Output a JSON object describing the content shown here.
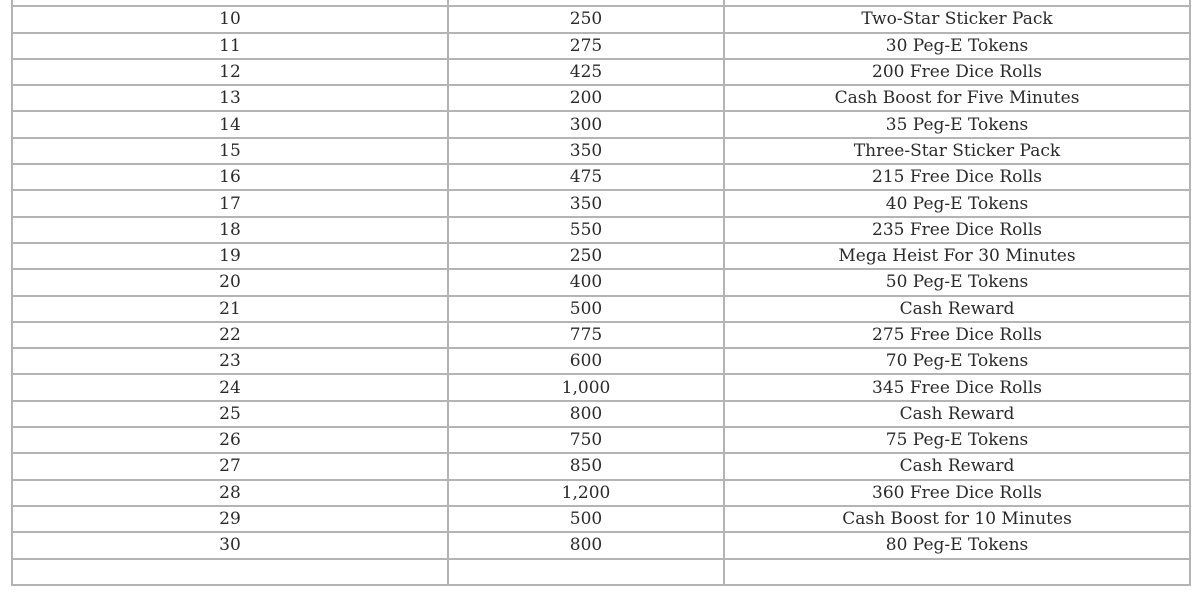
{
  "table": {
    "rows": [
      [
        "10",
        "250",
        "Two-Star Sticker Pack"
      ],
      [
        "11",
        "275",
        "30 Peg-E Tokens"
      ],
      [
        "12",
        "425",
        "200 Free Dice Rolls"
      ],
      [
        "13",
        "200",
        "Cash Boost for Five Minutes"
      ],
      [
        "14",
        "300",
        "35 Peg-E Tokens"
      ],
      [
        "15",
        "350",
        "Three-Star Sticker Pack"
      ],
      [
        "16",
        "475",
        "215 Free Dice Rolls"
      ],
      [
        "17",
        "350",
        "40 Peg-E Tokens"
      ],
      [
        "18",
        "550",
        "235 Free Dice Rolls"
      ],
      [
        "19",
        "250",
        "Mega Heist For 30 Minutes"
      ],
      [
        "20",
        "400",
        "50 Peg-E Tokens"
      ],
      [
        "21",
        "500",
        "Cash Reward"
      ],
      [
        "22",
        "775",
        "275 Free Dice Rolls"
      ],
      [
        "23",
        "600",
        "70 Peg-E Tokens"
      ],
      [
        "24",
        "1,000",
        "345 Free Dice Rolls"
      ],
      [
        "25",
        "800",
        "Cash Reward"
      ],
      [
        "26",
        "750",
        "75 Peg-E Tokens"
      ],
      [
        "27",
        "850",
        "Cash Reward"
      ],
      [
        "28",
        "1,200",
        "360 Free Dice Rolls"
      ],
      [
        "29",
        "500",
        "Cash Boost for 10 Minutes"
      ],
      [
        "30",
        "800",
        "80 Peg-E Tokens"
      ]
    ]
  }
}
